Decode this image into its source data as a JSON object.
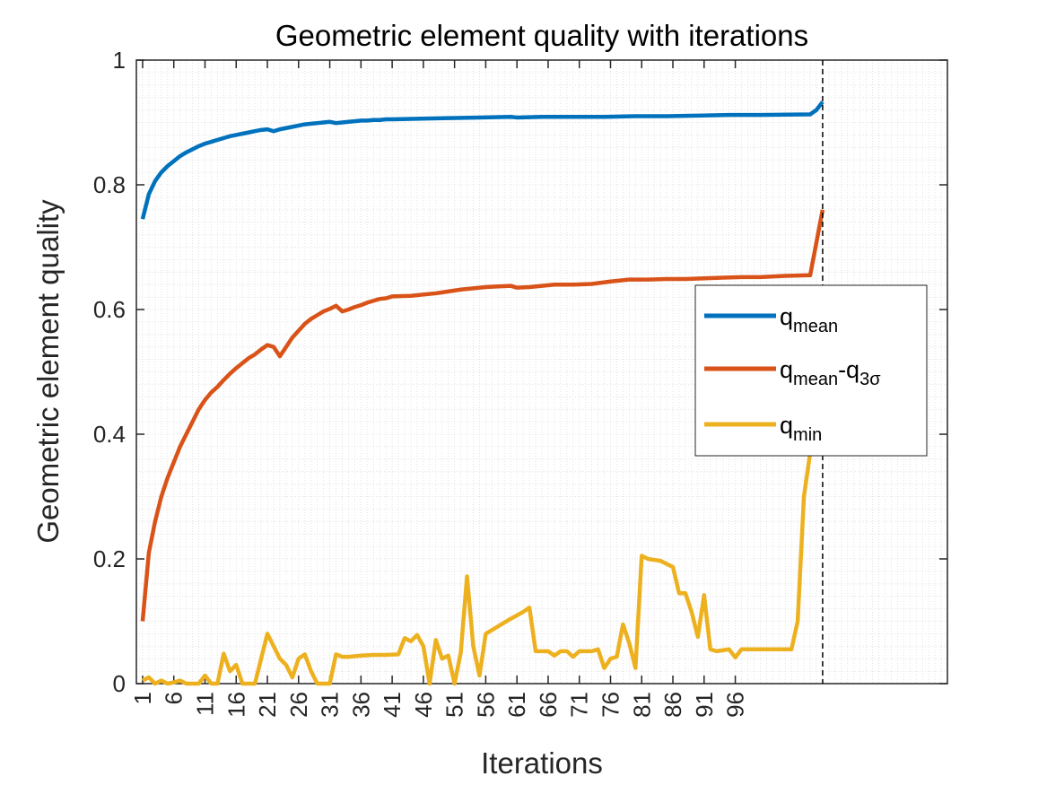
{
  "chart_data": {
    "type": "line",
    "title": "Geometric element quality with iterations",
    "xlabel": "Iterations",
    "ylabel": "Geometric element quality",
    "xlim": [
      0,
      130
    ],
    "ylim": [
      0,
      1
    ],
    "x_ticks": [
      1,
      6,
      11,
      16,
      21,
      26,
      31,
      36,
      41,
      46,
      51,
      56,
      61,
      66,
      71,
      76,
      81,
      86,
      91,
      96
    ],
    "y_ticks": [
      0,
      0.2,
      0.4,
      0.6,
      0.8,
      1
    ],
    "y_tick_labels": [
      "0",
      "0.2",
      "0.4",
      "0.6",
      "0.8",
      "1"
    ],
    "grid": "minor-dotted",
    "legend_position": "right",
    "vline_x": 110,
    "series": [
      {
        "name": "q_mean",
        "legend_main": "q",
        "legend_sub": "mean",
        "color": "#0072BD",
        "points": [
          [
            1,
            0.745
          ],
          [
            2,
            0.785
          ],
          [
            3,
            0.806
          ],
          [
            4,
            0.82
          ],
          [
            5,
            0.83
          ],
          [
            6,
            0.838
          ],
          [
            7,
            0.846
          ],
          [
            8,
            0.852
          ],
          [
            9,
            0.857
          ],
          [
            10,
            0.862
          ],
          [
            11,
            0.866
          ],
          [
            12,
            0.869
          ],
          [
            13,
            0.872
          ],
          [
            14,
            0.875
          ],
          [
            15,
            0.878
          ],
          [
            16,
            0.88
          ],
          [
            17,
            0.882
          ],
          [
            18,
            0.884
          ],
          [
            19,
            0.886
          ],
          [
            20,
            0.888
          ],
          [
            21,
            0.889
          ],
          [
            22,
            0.886
          ],
          [
            23,
            0.889
          ],
          [
            24,
            0.891
          ],
          [
            25,
            0.893
          ],
          [
            26,
            0.895
          ],
          [
            27,
            0.897
          ],
          [
            28,
            0.898
          ],
          [
            29,
            0.899
          ],
          [
            30,
            0.9
          ],
          [
            31,
            0.901
          ],
          [
            32,
            0.899
          ],
          [
            33,
            0.9
          ],
          [
            34,
            0.901
          ],
          [
            35,
            0.902
          ],
          [
            36,
            0.903
          ],
          [
            37,
            0.903
          ],
          [
            38,
            0.904
          ],
          [
            39,
            0.904
          ],
          [
            40,
            0.905
          ],
          [
            41,
            0.905
          ],
          [
            45,
            0.906
          ],
          [
            50,
            0.907
          ],
          [
            55,
            0.908
          ],
          [
            60,
            0.909
          ],
          [
            61,
            0.908
          ],
          [
            65,
            0.909
          ],
          [
            70,
            0.909
          ],
          [
            75,
            0.909
          ],
          [
            80,
            0.91
          ],
          [
            85,
            0.91
          ],
          [
            90,
            0.911
          ],
          [
            95,
            0.912
          ],
          [
            100,
            0.912
          ],
          [
            108,
            0.913
          ],
          [
            109,
            0.92
          ],
          [
            110,
            0.933
          ]
        ]
      },
      {
        "name": "q_mean-q_3sigma",
        "legend_main": "q",
        "legend_sub": "mean",
        "legend_mid": "-q",
        "legend_sub2": "3σ",
        "color": "#D95319",
        "points": [
          [
            1,
            0.1
          ],
          [
            2,
            0.21
          ],
          [
            3,
            0.26
          ],
          [
            4,
            0.3
          ],
          [
            5,
            0.33
          ],
          [
            6,
            0.355
          ],
          [
            7,
            0.38
          ],
          [
            8,
            0.4
          ],
          [
            9,
            0.42
          ],
          [
            10,
            0.44
          ],
          [
            11,
            0.455
          ],
          [
            12,
            0.467
          ],
          [
            13,
            0.476
          ],
          [
            14,
            0.487
          ],
          [
            15,
            0.497
          ],
          [
            16,
            0.506
          ],
          [
            17,
            0.514
          ],
          [
            18,
            0.522
          ],
          [
            19,
            0.528
          ],
          [
            20,
            0.536
          ],
          [
            21,
            0.543
          ],
          [
            22,
            0.54
          ],
          [
            23,
            0.525
          ],
          [
            24,
            0.54
          ],
          [
            25,
            0.555
          ],
          [
            26,
            0.566
          ],
          [
            27,
            0.577
          ],
          [
            28,
            0.585
          ],
          [
            29,
            0.591
          ],
          [
            30,
            0.597
          ],
          [
            31,
            0.601
          ],
          [
            32,
            0.606
          ],
          [
            33,
            0.597
          ],
          [
            34,
            0.6
          ],
          [
            35,
            0.604
          ],
          [
            36,
            0.607
          ],
          [
            37,
            0.611
          ],
          [
            38,
            0.614
          ],
          [
            39,
            0.617
          ],
          [
            40,
            0.618
          ],
          [
            41,
            0.621
          ],
          [
            44,
            0.622
          ],
          [
            46,
            0.624
          ],
          [
            48,
            0.626
          ],
          [
            50,
            0.629
          ],
          [
            52,
            0.632
          ],
          [
            54,
            0.634
          ],
          [
            56,
            0.636
          ],
          [
            58,
            0.637
          ],
          [
            60,
            0.638
          ],
          [
            61,
            0.635
          ],
          [
            63,
            0.636
          ],
          [
            65,
            0.638
          ],
          [
            67,
            0.64
          ],
          [
            70,
            0.64
          ],
          [
            73,
            0.641
          ],
          [
            76,
            0.645
          ],
          [
            79,
            0.648
          ],
          [
            82,
            0.648
          ],
          [
            85,
            0.649
          ],
          [
            88,
            0.649
          ],
          [
            91,
            0.65
          ],
          [
            94,
            0.651
          ],
          [
            97,
            0.652
          ],
          [
            100,
            0.652
          ],
          [
            104,
            0.654
          ],
          [
            108,
            0.655
          ],
          [
            110,
            0.76
          ]
        ]
      },
      {
        "name": "q_min",
        "legend_main": "q",
        "legend_sub": "min",
        "color": "#EDB120",
        "points": [
          [
            1,
            0.005
          ],
          [
            2,
            0.01
          ],
          [
            3,
            0.0
          ],
          [
            4,
            0.005
          ],
          [
            5,
            0.0
          ],
          [
            6,
            0.002
          ],
          [
            7,
            0.005
          ],
          [
            8,
            0.0
          ],
          [
            9,
            0.0
          ],
          [
            10,
            0.0
          ],
          [
            11,
            0.013
          ],
          [
            12,
            0.0
          ],
          [
            13,
            0.0
          ],
          [
            14,
            0.048
          ],
          [
            15,
            0.02
          ],
          [
            16,
            0.03
          ],
          [
            17,
            0.0
          ],
          [
            18,
            0.0
          ],
          [
            19,
            0.0
          ],
          [
            20,
            0.04
          ],
          [
            21,
            0.08
          ],
          [
            22,
            0.06
          ],
          [
            23,
            0.04
          ],
          [
            24,
            0.03
          ],
          [
            25,
            0.01
          ],
          [
            26,
            0.04
          ],
          [
            27,
            0.047
          ],
          [
            28,
            0.02
          ],
          [
            29,
            0.0
          ],
          [
            30,
            0.0
          ],
          [
            31,
            0.0
          ],
          [
            32,
            0.047
          ],
          [
            33,
            0.043
          ],
          [
            34,
            0.043
          ],
          [
            36,
            0.045
          ],
          [
            38,
            0.046
          ],
          [
            40,
            0.046
          ],
          [
            42,
            0.047
          ],
          [
            43,
            0.073
          ],
          [
            44,
            0.068
          ],
          [
            45,
            0.078
          ],
          [
            46,
            0.06
          ],
          [
            47,
            0.0
          ],
          [
            48,
            0.07
          ],
          [
            49,
            0.04
          ],
          [
            50,
            0.045
          ],
          [
            51,
            0.0
          ],
          [
            52,
            0.05
          ],
          [
            53,
            0.172
          ],
          [
            54,
            0.06
          ],
          [
            55,
            0.013
          ],
          [
            56,
            0.08
          ],
          [
            58,
            0.092
          ],
          [
            60,
            0.104
          ],
          [
            62,
            0.115
          ],
          [
            63,
            0.122
          ],
          [
            64,
            0.052
          ],
          [
            66,
            0.052
          ],
          [
            67,
            0.045
          ],
          [
            68,
            0.052
          ],
          [
            69,
            0.052
          ],
          [
            70,
            0.043
          ],
          [
            71,
            0.052
          ],
          [
            72,
            0.052
          ],
          [
            73,
            0.052
          ],
          [
            74,
            0.055
          ],
          [
            75,
            0.025
          ],
          [
            76,
            0.04
          ],
          [
            77,
            0.043
          ],
          [
            78,
            0.095
          ],
          [
            79,
            0.065
          ],
          [
            80,
            0.025
          ],
          [
            81,
            0.205
          ],
          [
            82,
            0.2
          ],
          [
            84,
            0.197
          ],
          [
            86,
            0.187
          ],
          [
            87,
            0.145
          ],
          [
            88,
            0.145
          ],
          [
            89,
            0.115
          ],
          [
            90,
            0.075
          ],
          [
            91,
            0.142
          ],
          [
            92,
            0.055
          ],
          [
            93,
            0.052
          ],
          [
            95,
            0.055
          ],
          [
            96,
            0.042
          ],
          [
            97,
            0.055
          ],
          [
            99,
            0.055
          ],
          [
            101,
            0.055
          ],
          [
            103,
            0.055
          ],
          [
            105,
            0.055
          ],
          [
            106,
            0.1
          ],
          [
            107,
            0.3
          ],
          [
            108,
            0.37
          ]
        ]
      }
    ]
  }
}
